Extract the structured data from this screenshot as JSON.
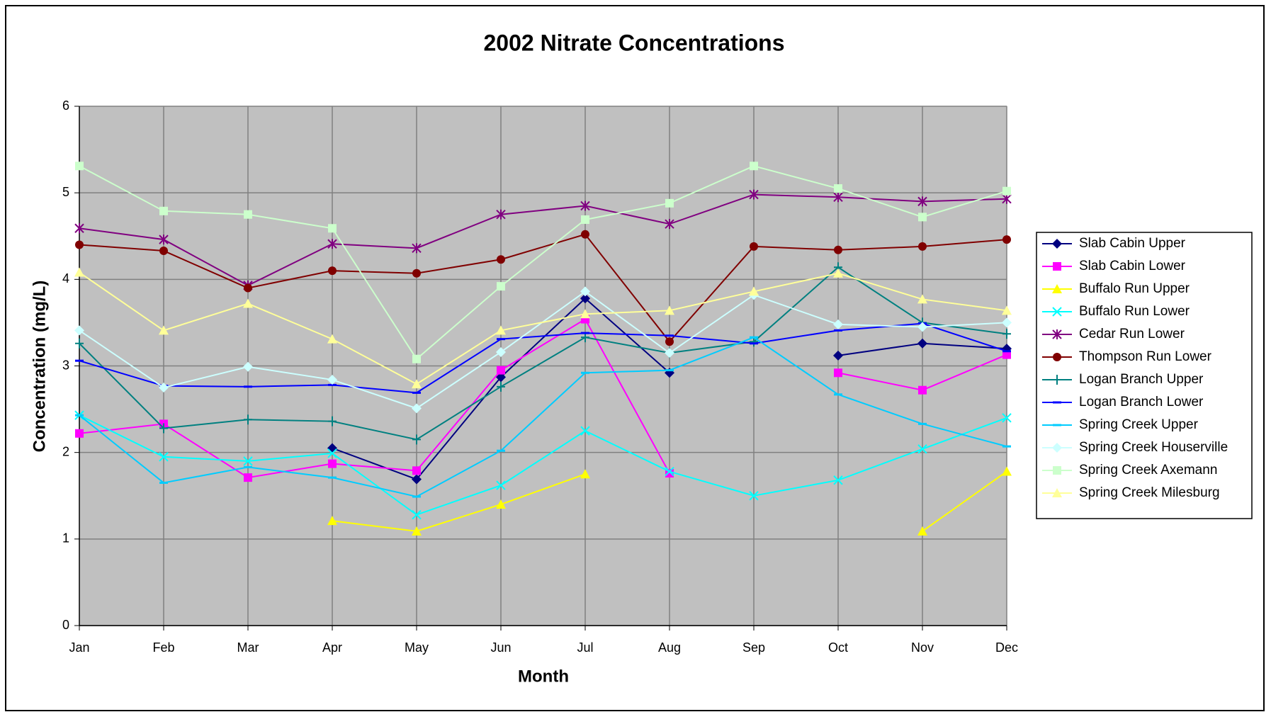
{
  "chart_data": {
    "type": "line",
    "title": "2002 Nitrate Concentrations",
    "x_label": "Month",
    "y_label": "Concentration (mg/L)",
    "categories": [
      "Jan",
      "Feb",
      "Mar",
      "Apr",
      "May",
      "Jun",
      "Jul",
      "Aug",
      "Sep",
      "Oct",
      "Nov",
      "Dec"
    ],
    "ylim": [
      0,
      6
    ],
    "yticks": [
      0,
      1,
      2,
      3,
      4,
      5,
      6
    ],
    "grid": true,
    "legend": "right",
    "series": [
      {
        "name": "Slab Cabin Upper",
        "color": "#000080",
        "marker": "diamond",
        "values": [
          null,
          null,
          null,
          2.05,
          1.69,
          2.87,
          3.78,
          2.92,
          null,
          3.12,
          3.26,
          3.2
        ]
      },
      {
        "name": "Slab Cabin Lower",
        "color": "#ff00ff",
        "marker": "square",
        "values": [
          2.22,
          2.33,
          1.71,
          1.87,
          1.79,
          2.95,
          3.54,
          1.76,
          null,
          2.92,
          2.72,
          3.13
        ]
      },
      {
        "name": "Buffalo Run Upper",
        "color": "#ffff00",
        "marker": "triangle",
        "values": [
          null,
          null,
          null,
          1.21,
          1.09,
          1.4,
          1.75,
          null,
          null,
          null,
          1.09,
          1.78
        ]
      },
      {
        "name": "Buffalo Run Lower",
        "color": "#00ffff",
        "marker": "x",
        "values": [
          2.43,
          1.95,
          1.9,
          1.99,
          1.28,
          1.62,
          2.25,
          1.78,
          1.5,
          1.68,
          2.04,
          2.4
        ]
      },
      {
        "name": "Cedar Run Lower",
        "color": "#800080",
        "marker": "star",
        "values": [
          4.59,
          4.46,
          3.93,
          4.41,
          4.36,
          4.75,
          4.85,
          4.64,
          4.98,
          4.95,
          4.9,
          4.93
        ]
      },
      {
        "name": "Thompson Run Lower",
        "color": "#800000",
        "marker": "circle",
        "values": [
          4.4,
          4.33,
          3.9,
          4.1,
          4.07,
          4.23,
          4.52,
          3.28,
          4.38,
          4.34,
          4.38,
          4.46
        ]
      },
      {
        "name": "Logan Branch Upper",
        "color": "#008080",
        "marker": "plus",
        "values": [
          3.26,
          2.28,
          2.38,
          2.36,
          2.15,
          2.76,
          3.33,
          3.15,
          3.28,
          4.14,
          3.5,
          3.37
        ]
      },
      {
        "name": "Logan Branch Lower",
        "color": "#0000ff",
        "marker": "dash",
        "values": [
          3.06,
          2.77,
          2.76,
          2.78,
          2.69,
          3.31,
          3.38,
          3.35,
          3.26,
          3.41,
          3.49,
          3.17
        ]
      },
      {
        "name": "Spring Creek Upper",
        "color": "#00ccff",
        "marker": "dash",
        "values": [
          2.43,
          1.65,
          1.83,
          1.71,
          1.49,
          2.02,
          2.92,
          2.95,
          3.33,
          2.67,
          2.33,
          2.07
        ]
      },
      {
        "name": "Spring Creek Houserville",
        "color": "#ccffff",
        "marker": "diamond",
        "values": [
          3.41,
          2.75,
          2.99,
          2.84,
          2.51,
          3.16,
          3.86,
          3.15,
          3.82,
          3.48,
          3.45,
          3.5
        ]
      },
      {
        "name": "Spring Creek Axemann",
        "color": "#ccffcc",
        "marker": "square",
        "values": [
          5.31,
          4.79,
          4.75,
          4.59,
          3.08,
          3.92,
          4.69,
          4.88,
          5.31,
          5.05,
          4.72,
          5.02
        ]
      },
      {
        "name": "Spring Creek Milesburg",
        "color": "#ffff99",
        "marker": "triangle",
        "values": [
          4.08,
          3.41,
          3.72,
          3.31,
          2.79,
          3.41,
          3.6,
          3.64,
          3.86,
          4.07,
          3.77,
          3.64
        ]
      }
    ]
  }
}
